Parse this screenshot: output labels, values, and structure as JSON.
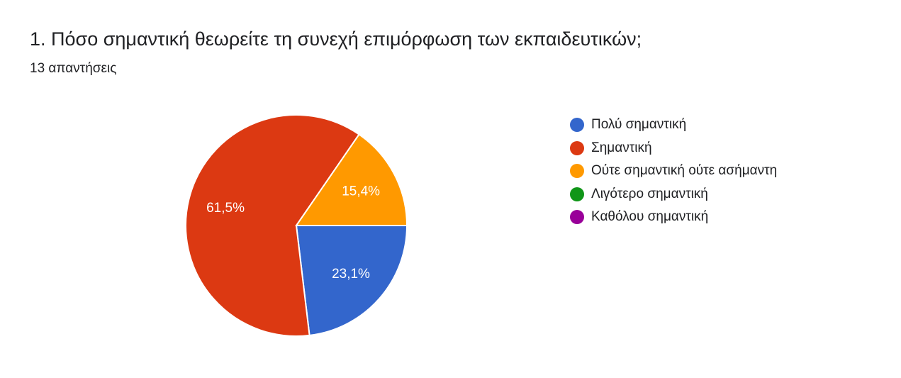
{
  "header": {
    "title": "1. Πόσο σημαντική θεωρείτε τη συνεχή επιμόρφωση των εκπαιδευτικών;",
    "response_count": "13 απαντήσεις"
  },
  "chart_data": {
    "type": "pie",
    "title": "1. Πόσο σημαντική θεωρείτε τη συνεχή επιμόρφωση των εκπαιδευτικών;",
    "categories": [
      "Πολύ σημαντική",
      "Σημαντική",
      "Ούτε σημαντική ούτε ασήμαντη",
      "Λιγότερο σημαντική",
      "Καθόλου σημαντική"
    ],
    "values": [
      23.1,
      61.5,
      15.4,
      0,
      0
    ],
    "data_labels": [
      "23,1%",
      "61,5%",
      "15,4%",
      "",
      ""
    ],
    "colors": [
      "#3366cc",
      "#dc3912",
      "#ff9900",
      "#109618",
      "#990099"
    ],
    "legend_position": "right"
  }
}
